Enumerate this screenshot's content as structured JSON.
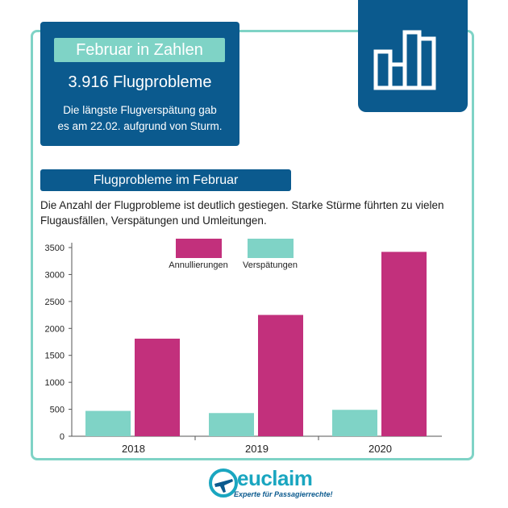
{
  "stats": {
    "title": "Februar in Zahlen",
    "total": "3.916 Flugprobleme",
    "note_line1": "Die längste Flugverspätung gab",
    "note_line2": "es am 22.02. aufgrund von Sturm."
  },
  "section": {
    "title": "Flugprobleme im Februar",
    "intro_line1": "Die Anzahl der Flugprobleme ist deutlich gestiegen. Starke Stürme führten zu vielen",
    "intro_line2": "Flugausfällen, Verspätungen und Umleitungen."
  },
  "chart_data": {
    "type": "bar",
    "categories": [
      "2018",
      "2019",
      "2020"
    ],
    "series": [
      {
        "name": "Verspätungen",
        "color": "#7fd3c6",
        "values": [
          470,
          430,
          490
        ]
      },
      {
        "name": "Annullierungen",
        "color": "#c2307c",
        "values": [
          1810,
          2250,
          3420
        ]
      }
    ],
    "ylim": [
      0,
      3500
    ],
    "yticks": [
      0,
      500,
      1000,
      1500,
      2000,
      2500,
      3000,
      3500
    ],
    "legend_position": "top-center",
    "grid": false
  },
  "logo": {
    "name": "euclaim",
    "tagline": "Experte für Passagierrechte!",
    "icon": "airplane-icon"
  },
  "colors": {
    "navy": "#0b5a8e",
    "mint": "#7fd3c6",
    "magenta": "#c2307c"
  }
}
